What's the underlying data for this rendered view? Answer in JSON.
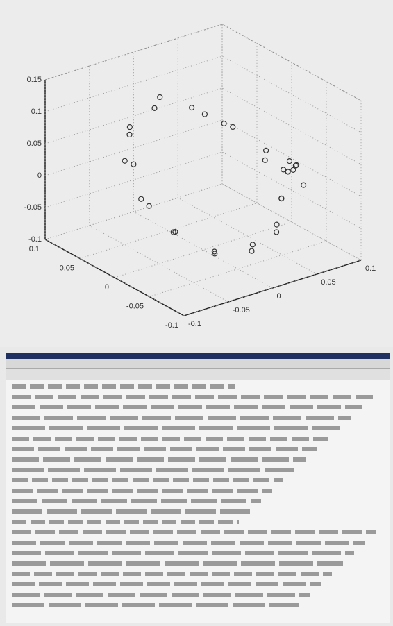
{
  "chart_data": {
    "type": "scatter3d",
    "x": [
      0.07,
      0.061,
      0.035,
      0,
      -0.035,
      -0.061,
      -0.07,
      -0.061,
      -0.035,
      0,
      0.035,
      0.061,
      0.075,
      0.055,
      0.04,
      0.005,
      -0.03,
      -0.055,
      -0.065,
      -0.055,
      -0.03,
      -0.005,
      0.03,
      0.055,
      -0.02,
      -0.025,
      -0.015,
      -0.03,
      -0.02,
      -0.01,
      -0.025,
      -0.035
    ],
    "y": [
      0,
      0.035,
      0.061,
      0.07,
      0.061,
      0.035,
      0,
      -0.035,
      -0.061,
      -0.07,
      -0.061,
      -0.035,
      0.01,
      0.045,
      0.055,
      0.075,
      0.065,
      0.04,
      0.005,
      -0.03,
      -0.055,
      -0.065,
      -0.055,
      -0.04,
      0.08,
      0.085,
      0.09,
      0.082,
      0.075,
      0.088,
      0.078,
      0.086
    ],
    "z": [
      0.08,
      0.071,
      0.045,
      0.01,
      -0.025,
      -0.051,
      -0.06,
      -0.051,
      -0.025,
      0.01,
      0.045,
      0.071,
      0.09,
      0.06,
      0.05,
      0.02,
      -0.03,
      -0.045,
      -0.055,
      -0.06,
      -0.03,
      0.0,
      0.04,
      0.065,
      0.0,
      0.01,
      -0.005,
      0.015,
      0.005,
      -0.01,
      0.02,
      -0.015
    ],
    "xlim": [
      -0.1,
      0.1
    ],
    "xticks": [
      -0.1,
      -0.05,
      0,
      0.05,
      0.1
    ],
    "ylim": [
      -0.1,
      0.1
    ],
    "yticks": [
      -0.1,
      -0.05,
      0,
      0.05,
      0.1
    ],
    "zlim": [
      -0.1,
      0.15
    ],
    "zticks": [
      -0.1,
      -0.05,
      0,
      0.05,
      0.1,
      0.15
    ],
    "color": "#333333",
    "grid": true
  }
}
